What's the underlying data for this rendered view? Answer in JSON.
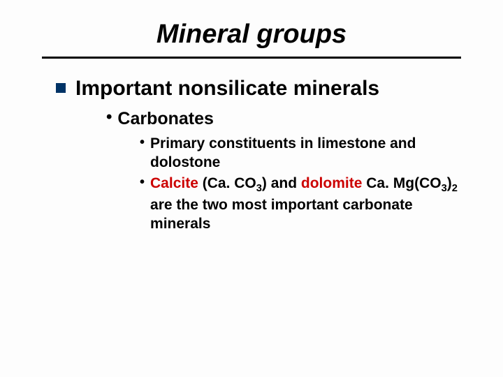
{
  "colors": {
    "bullet_square": "#003366",
    "highlight": "#cc0000",
    "text": "#000000",
    "rule": "#000000",
    "background": "#fdfdfd"
  },
  "typography": {
    "title_fontsize": 38,
    "title_style": "italic bold",
    "l1_fontsize": 30,
    "l2_fontsize": 25,
    "l3_fontsize": 21,
    "font_family": "Verdana"
  },
  "title": "Mineral groups",
  "l1": "Important nonsilicate minerals",
  "l2": "Carbonates",
  "l3a": "Primary constituents in limestone and dolostone",
  "l3b_calcite": "Calcite",
  "l3b_mid1": " (Ca. CO",
  "l3b_sub1": "3",
  "l3b_mid2": ") and ",
  "l3b_dolomite": "dolomite",
  "l3b_mid3": " Ca. Mg(CO",
  "l3b_sub2": "3",
  "l3b_mid4": ")",
  "l3b_sub3": "2",
  "l3b_tail": " are the two most important carbonate minerals"
}
